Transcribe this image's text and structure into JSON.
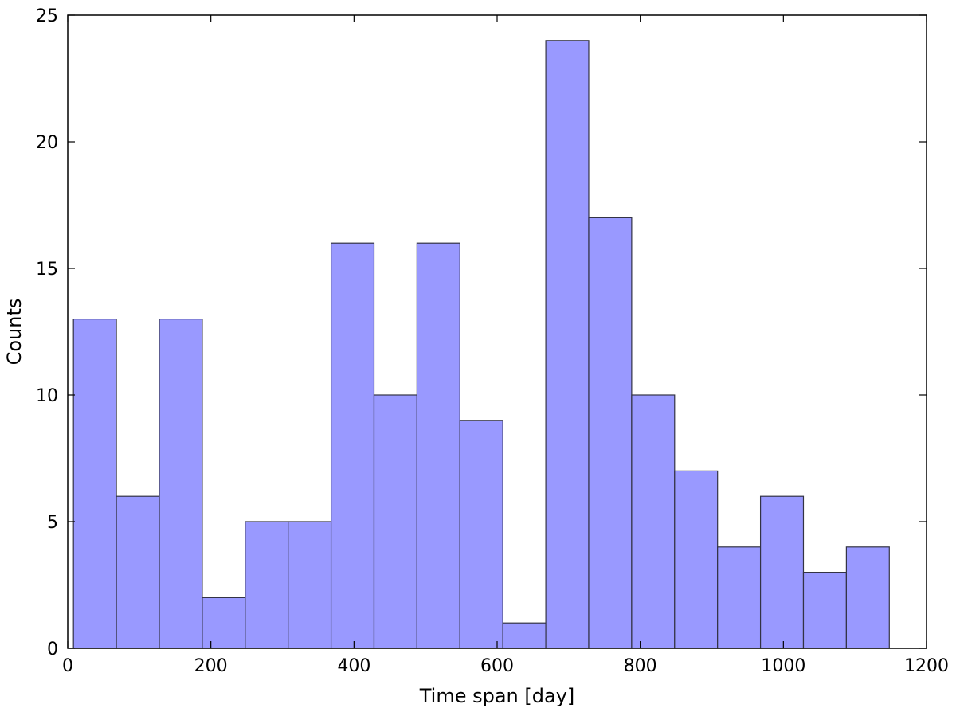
{
  "chart_data": {
    "type": "bar",
    "subtype": "histogram",
    "title": "",
    "xlabel": "Time span [day]",
    "ylabel": "Counts",
    "xlim": [
      0,
      1200
    ],
    "ylim": [
      0,
      25
    ],
    "xticks": [
      0,
      200,
      400,
      600,
      800,
      1000,
      1200
    ],
    "yticks": [
      0,
      5,
      10,
      15,
      20,
      25
    ],
    "grid": false,
    "legend": "none",
    "bin_edges": [
      8,
      68,
      128,
      188,
      248,
      308,
      368,
      428,
      488,
      548,
      608,
      668,
      728,
      788,
      848,
      908,
      968,
      1028,
      1088,
      1148
    ],
    "values": [
      13,
      6,
      13,
      2,
      5,
      5,
      16,
      10,
      16,
      9,
      1,
      24,
      17,
      10,
      7,
      4,
      6,
      3,
      4
    ],
    "colors": {
      "bar_fill": "#9999ff",
      "bar_edge": "#333344",
      "axes": "#000000"
    }
  }
}
